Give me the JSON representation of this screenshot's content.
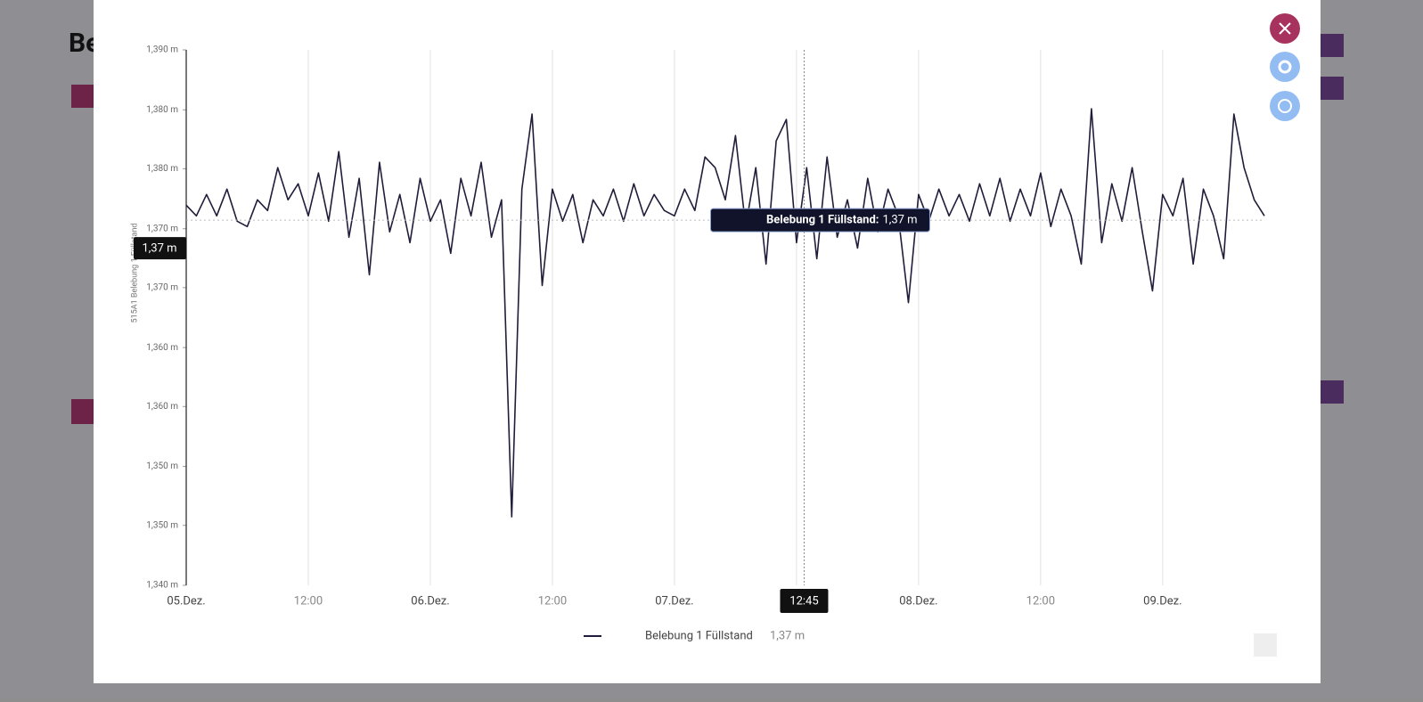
{
  "background": {
    "heading": "Be"
  },
  "chart_data": {
    "type": "line",
    "y_axis_label": "515A1 Belebung 1 Füllstand",
    "x": [
      0,
      1,
      2,
      3,
      4,
      5,
      6,
      7,
      8,
      9,
      10,
      11,
      12,
      13,
      14,
      15,
      16,
      17,
      18,
      19,
      20,
      21,
      22,
      23,
      24,
      25,
      26,
      27,
      28,
      29,
      30,
      31,
      32,
      33,
      34,
      35,
      36,
      37,
      38,
      39,
      40,
      41,
      42,
      43,
      44,
      45,
      46,
      47,
      48,
      49,
      50,
      51,
      52,
      53,
      54,
      55,
      56,
      57,
      58,
      59,
      60,
      61,
      62,
      63,
      64,
      65,
      66,
      67,
      68,
      69,
      70,
      71,
      72,
      73,
      74,
      75,
      76,
      77,
      78,
      79,
      80,
      81,
      82,
      83,
      84,
      85,
      86,
      87,
      88,
      89,
      90,
      91,
      92,
      93,
      94,
      95,
      96,
      97,
      98,
      99,
      100,
      101,
      102,
      103,
      104,
      105,
      106
    ],
    "series": [
      {
        "name": "Belebung 1 Füllstand",
        "color": "#1f1d3a",
        "values": [
          1.3755,
          1.3745,
          1.3765,
          1.3745,
          1.377,
          1.374,
          1.3735,
          1.376,
          1.375,
          1.379,
          1.376,
          1.3775,
          1.3745,
          1.3785,
          1.374,
          1.3805,
          1.3725,
          1.378,
          1.369,
          1.3795,
          1.373,
          1.3765,
          1.372,
          1.378,
          1.374,
          1.376,
          1.371,
          1.378,
          1.3745,
          1.3795,
          1.3725,
          1.376,
          1.3464,
          1.377,
          1.384,
          1.368,
          1.377,
          1.374,
          1.3765,
          1.372,
          1.376,
          1.3745,
          1.377,
          1.374,
          1.3775,
          1.3745,
          1.3765,
          1.375,
          1.3745,
          1.377,
          1.375,
          1.38,
          1.379,
          1.376,
          1.382,
          1.3735,
          1.379,
          1.37,
          1.3815,
          1.3835,
          1.372,
          1.379,
          1.3705,
          1.38,
          1.3725,
          1.376,
          1.3715,
          1.378,
          1.373,
          1.377,
          1.3745,
          1.3664,
          1.3765,
          1.374,
          1.377,
          1.3745,
          1.3765,
          1.374,
          1.3775,
          1.3745,
          1.378,
          1.374,
          1.377,
          1.3745,
          1.3785,
          1.3735,
          1.377,
          1.3745,
          1.37,
          1.3845,
          1.372,
          1.3775,
          1.374,
          1.379,
          1.373,
          1.3675,
          1.3765,
          1.3745,
          1.378,
          1.37,
          1.377,
          1.3745,
          1.3705,
          1.384,
          1.379,
          1.376,
          1.3745
        ]
      }
    ],
    "xlim": [
      0,
      106
    ],
    "xticks": [
      {
        "value": 0,
        "label": "05.Dez."
      },
      {
        "value": 12,
        "label": "12:00"
      },
      {
        "value": 24,
        "label": "06.Dez."
      },
      {
        "value": 36,
        "label": "12:00"
      },
      {
        "value": 48,
        "label": "07.Dez."
      },
      {
        "value": 60,
        "label": "12:00"
      },
      {
        "value": 72,
        "label": "08.Dez."
      },
      {
        "value": 84,
        "label": "12:00"
      },
      {
        "value": 96,
        "label": "09.Dez."
      }
    ],
    "ylim": [
      1.34,
      1.39
    ],
    "yticks": [
      {
        "value": 1.39,
        "label": "1,390 m"
      },
      {
        "value": 1.3844,
        "label": "1,380 m"
      },
      {
        "value": 1.3789,
        "label": "1,380 m"
      },
      {
        "value": 1.3733,
        "label": "1,370 m"
      },
      {
        "value": 1.3678,
        "label": "1,370 m"
      },
      {
        "value": 1.3622,
        "label": "1,360 m"
      },
      {
        "value": 1.3567,
        "label": "1,360 m"
      },
      {
        "value": 1.3511,
        "label": "1,350 m"
      },
      {
        "value": 1.3456,
        "label": "1,350 m"
      },
      {
        "value": 1.34,
        "label": "1,340 m"
      }
    ],
    "xgrid": true,
    "crosshair": {
      "x": 60.75,
      "y": 1.3741,
      "x_label": "12:45",
      "y_label": "1,37 m",
      "tooltip_name": "Belebung 1 Füllstand:"
    }
  }
}
